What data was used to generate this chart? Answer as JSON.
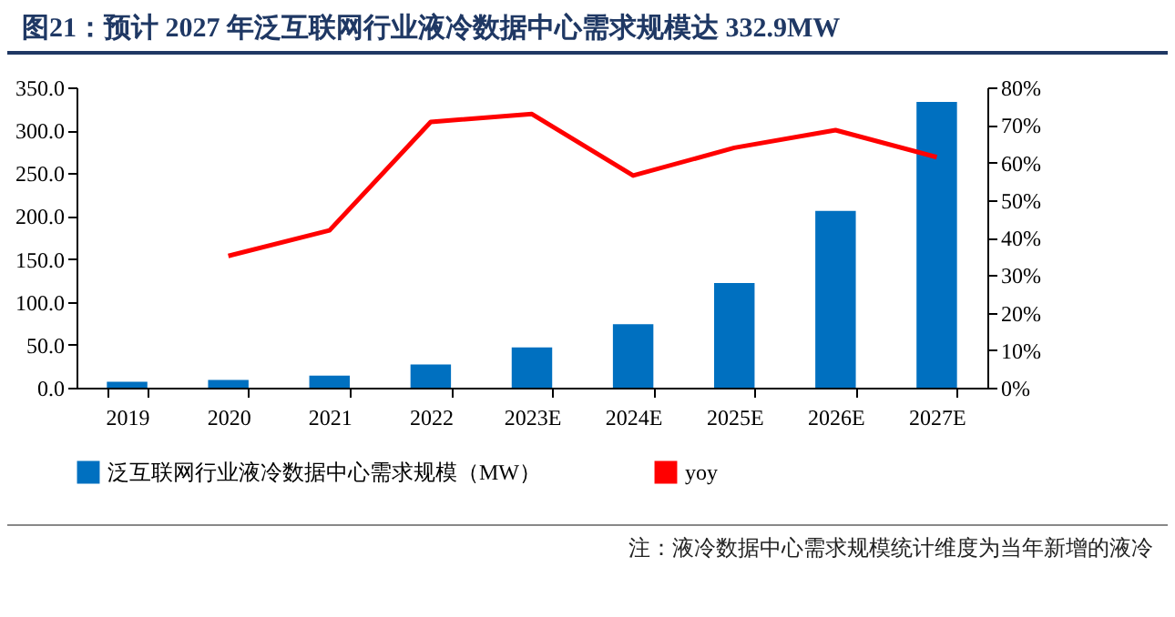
{
  "chart_data": {
    "type": "bar",
    "title": "图21：预计 2027 年泛互联网行业液冷数据中心需求规模达 332.9MW",
    "categories": [
      "2019",
      "2020",
      "2021",
      "2022",
      "2023E",
      "2024E",
      "2025E",
      "2026E",
      "2027E"
    ],
    "series": [
      {
        "name": "泛互联网行业液冷数据中心需求规模（MW）",
        "color": "#0070c0",
        "values": [
          7,
          9,
          14,
          27,
          47,
          74,
          122,
          206,
          332.9
        ]
      },
      {
        "name": "yoy",
        "type": "line",
        "axis": "y2",
        "color": "#ff0000",
        "values": [
          null,
          35.1,
          41.9,
          70.8,
          72.9,
          56.5,
          63.9,
          68.6,
          61.4
        ]
      }
    ],
    "ylim": [
      0,
      350
    ],
    "yticks": [
      {
        "value": 0,
        "label": "0.0"
      },
      {
        "value": 50,
        "label": "50.0"
      },
      {
        "value": 100,
        "label": "100.0"
      },
      {
        "value": 150,
        "label": "150.0"
      },
      {
        "value": 200,
        "label": "200.0"
      },
      {
        "value": 250,
        "label": "250.0"
      },
      {
        "value": 300,
        "label": "300.0"
      },
      {
        "value": 350,
        "label": "350.0"
      }
    ],
    "y2lim": [
      0,
      80
    ],
    "y2ticks": [
      {
        "value": 0,
        "label": "0%"
      },
      {
        "value": 10,
        "label": "10%"
      },
      {
        "value": 20,
        "label": "20%"
      },
      {
        "value": 30,
        "label": "30%"
      },
      {
        "value": 40,
        "label": "40%"
      },
      {
        "value": 50,
        "label": "50%"
      },
      {
        "value": 60,
        "label": "60%"
      },
      {
        "value": 70,
        "label": "70%"
      },
      {
        "value": 80,
        "label": "80%"
      }
    ],
    "grid": false,
    "legend": "bottom",
    "annotations": [
      "注：液冷数据中心需求规模统计维度为当年新增的液冷"
    ]
  }
}
